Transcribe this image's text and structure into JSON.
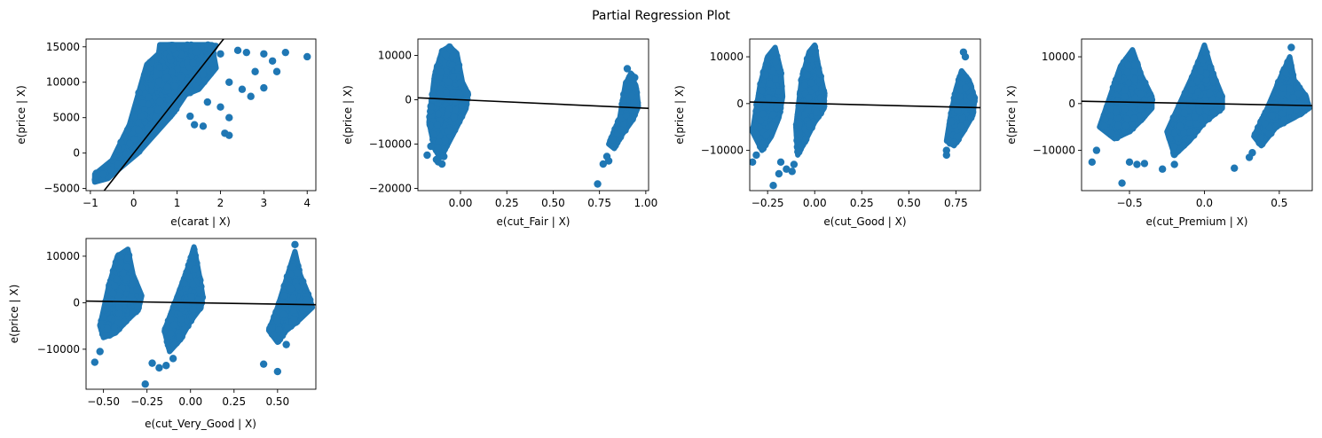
{
  "figure": {
    "title": "Partial Regression Plot",
    "point_color": "#1f77b4",
    "line_color": "#000000"
  },
  "chart_data": [
    {
      "type": "scatter",
      "xlabel": "e(carat | X)",
      "ylabel": "e(price | X)",
      "xlim": [
        -1.1,
        4.2
      ],
      "ylim": [
        -5300,
        16100
      ],
      "xticks": [
        -1,
        0,
        1,
        2,
        3,
        4
      ],
      "xtick_labels": [
        "−1",
        "0",
        "1",
        "2",
        "3",
        "4"
      ],
      "yticks": [
        -5000,
        0,
        5000,
        10000,
        15000
      ],
      "ytick_labels": [
        "−5000",
        "0",
        "5000",
        "10000",
        "15000"
      ],
      "fit_line": {
        "slope": 7770,
        "intercept": 0
      },
      "clusters": [
        {
          "poly": [
            [
              -0.9,
              -4100
            ],
            [
              -0.6,
              -3600
            ],
            [
              0.1,
              0
            ],
            [
              0.9,
              5500
            ],
            [
              1.5,
              11000
            ],
            [
              1.9,
              15200
            ],
            [
              0.8,
              15300
            ],
            [
              0.3,
              12500
            ],
            [
              -0.1,
              4000
            ],
            [
              -0.5,
              -1000
            ],
            [
              -0.9,
              -3000
            ]
          ],
          "n": 450
        },
        {
          "poly": [
            [
              0.6,
              15300
            ],
            [
              1.8,
              15300
            ],
            [
              1.9,
              12000
            ],
            [
              1.5,
              9000
            ],
            [
              0.9,
              7500
            ],
            [
              0.5,
              10000
            ]
          ],
          "n": 140
        }
      ],
      "points": [
        [
          2.0,
          14000
        ],
        [
          2.4,
          14500
        ],
        [
          2.6,
          14200
        ],
        [
          3.0,
          14000
        ],
        [
          3.5,
          14200
        ],
        [
          4.0,
          13600
        ],
        [
          2.8,
          11500
        ],
        [
          3.3,
          11500
        ],
        [
          3.2,
          13000
        ],
        [
          2.5,
          9000
        ],
        [
          2.7,
          8000
        ],
        [
          3.0,
          9200
        ],
        [
          2.2,
          10000
        ],
        [
          2.0,
          6500
        ],
        [
          1.7,
          7200
        ],
        [
          2.2,
          5000
        ],
        [
          1.3,
          5200
        ],
        [
          1.6,
          3800
        ],
        [
          2.1,
          2800
        ],
        [
          2.2,
          2500
        ],
        [
          1.4,
          4000
        ]
      ]
    },
    {
      "type": "scatter",
      "xlabel": "e(cut_Fair | X)",
      "ylabel": "e(price | X)",
      "xlim": [
        -0.23,
        1.015
      ],
      "ylim": [
        -20500,
        13700
      ],
      "xticks": [
        0,
        0.25,
        0.5,
        0.75,
        1.0
      ],
      "xtick_labels": [
        "0.00",
        "0.25",
        "0.50",
        "0.75",
        "1.00"
      ],
      "yticks": [
        -20000,
        -10000,
        0,
        10000
      ],
      "ytick_labels": [
        "−20000",
        "−10000",
        "0",
        "10000"
      ],
      "fit_line": {
        "slope": -1900,
        "intercept": 0
      },
      "clusters": [
        {
          "poly": [
            [
              -0.17,
              -5000
            ],
            [
              -0.14,
              5500
            ],
            [
              -0.1,
              11000
            ],
            [
              -0.06,
              12000
            ],
            [
              -0.02,
              10500
            ],
            [
              0.01,
              4000
            ],
            [
              0.04,
              1500
            ],
            [
              0.03,
              -2000
            ],
            [
              -0.03,
              -7000
            ],
            [
              -0.08,
              -11000
            ],
            [
              -0.11,
              -13000
            ],
            [
              -0.14,
              -11000
            ]
          ],
          "n": 420
        },
        {
          "poly": [
            [
              0.8,
              -10000
            ],
            [
              0.86,
              -4000
            ],
            [
              0.89,
              3500
            ],
            [
              0.92,
              6000
            ],
            [
              0.95,
              2500
            ],
            [
              0.96,
              -1500
            ],
            [
              0.93,
              -4500
            ],
            [
              0.87,
              -8000
            ],
            [
              0.83,
              -11000
            ]
          ],
          "n": 260
        }
      ],
      "points": [
        [
          -0.18,
          -12500
        ],
        [
          -0.16,
          -10500
        ],
        [
          -0.13,
          -13500
        ],
        [
          -0.12,
          -14000
        ],
        [
          -0.1,
          -14500
        ],
        [
          -0.09,
          -12800
        ],
        [
          0.74,
          -19000
        ],
        [
          0.77,
          -14500
        ],
        [
          0.79,
          -12800
        ],
        [
          0.8,
          -13800
        ],
        [
          0.82,
          -9000
        ],
        [
          0.9,
          7000
        ],
        [
          0.94,
          5000
        ]
      ]
    },
    {
      "type": "scatter",
      "xlabel": "e(cut_Good | X)",
      "ylabel": "e(price | X)",
      "xlim": [
        -0.345,
        0.88
      ],
      "ylim": [
        -18600,
        13800
      ],
      "xticks": [
        -0.25,
        0,
        0.25,
        0.5,
        0.75
      ],
      "xtick_labels": [
        "−0.25",
        "0.00",
        "0.25",
        "0.50",
        "0.75"
      ],
      "yticks": [
        -10000,
        0,
        10000
      ],
      "ytick_labels": [
        "−10000",
        "0",
        "10000"
      ],
      "fit_line": {
        "slope": -1000,
        "intercept": 0
      },
      "clusters": [
        {
          "poly": [
            [
              -0.33,
              -6000
            ],
            [
              -0.29,
              4000
            ],
            [
              -0.25,
              10000
            ],
            [
              -0.21,
              12000
            ],
            [
              -0.18,
              7000
            ],
            [
              -0.17,
              1500
            ],
            [
              -0.19,
              -3000
            ],
            [
              -0.23,
              -7000
            ],
            [
              -0.28,
              -10000
            ]
          ],
          "n": 320
        },
        {
          "poly": [
            [
              -0.1,
              -5000
            ],
            [
              -0.07,
              5000
            ],
            [
              -0.03,
              11000
            ],
            [
              0.0,
              12500
            ],
            [
              0.02,
              8000
            ],
            [
              0.05,
              2500
            ],
            [
              0.05,
              -1000
            ],
            [
              0.0,
              -4000
            ],
            [
              -0.05,
              -8000
            ],
            [
              -0.09,
              -11000
            ]
          ],
          "n": 380
        },
        {
          "poly": [
            [
              0.7,
              -8000
            ],
            [
              0.72,
              -3000
            ],
            [
              0.75,
              3000
            ],
            [
              0.78,
              7000
            ],
            [
              0.82,
              5000
            ],
            [
              0.85,
              1000
            ],
            [
              0.84,
              -2500
            ],
            [
              0.79,
              -6000
            ],
            [
              0.74,
              -9000
            ]
          ],
          "n": 220
        }
      ],
      "points": [
        [
          -0.33,
          -12500
        ],
        [
          -0.31,
          -11000
        ],
        [
          -0.22,
          -17500
        ],
        [
          -0.19,
          -15000
        ],
        [
          -0.18,
          -12500
        ],
        [
          -0.15,
          -14000
        ],
        [
          -0.12,
          -14500
        ],
        [
          -0.11,
          -13000
        ],
        [
          0.7,
          -10000
        ],
        [
          0.7,
          -11000
        ],
        [
          0.79,
          11000
        ],
        [
          0.8,
          10000
        ]
      ]
    },
    {
      "type": "scatter",
      "xlabel": "e(cut_Premium | X)",
      "ylabel": "e(price | X)",
      "xlim": [
        -0.82,
        0.72
      ],
      "ylim": [
        -18600,
        13800
      ],
      "xticks": [
        -0.5,
        0,
        0.5
      ],
      "xtick_labels": [
        "−0.5",
        "0.0",
        "0.5"
      ],
      "yticks": [
        -10000,
        0,
        10000
      ],
      "ytick_labels": [
        "−10000",
        "0",
        "10000"
      ],
      "fit_line": {
        "slope": -600,
        "intercept": 0
      },
      "clusters": [
        {
          "poly": [
            [
              -0.7,
              -5000
            ],
            [
              -0.63,
              1500
            ],
            [
              -0.56,
              8000
            ],
            [
              -0.48,
              11500
            ],
            [
              -0.42,
              6000
            ],
            [
              -0.35,
              1500
            ],
            [
              -0.35,
              -1000
            ],
            [
              -0.42,
              -3500
            ],
            [
              -0.5,
              -6000
            ],
            [
              -0.6,
              -7500
            ]
          ],
          "n": 380
        },
        {
          "poly": [
            [
              -0.25,
              -6000
            ],
            [
              -0.15,
              1000
            ],
            [
              -0.05,
              8000
            ],
            [
              0.0,
              12500
            ],
            [
              0.05,
              7000
            ],
            [
              0.12,
              1500
            ],
            [
              0.12,
              -1000
            ],
            [
              0.0,
              -4000
            ],
            [
              -0.1,
              -8000
            ],
            [
              -0.2,
              -11000
            ]
          ],
          "n": 400
        },
        {
          "poly": [
            [
              0.33,
              -7000
            ],
            [
              0.42,
              -1000
            ],
            [
              0.5,
              5000
            ],
            [
              0.57,
              10000
            ],
            [
              0.6,
              5000
            ],
            [
              0.68,
              1500
            ],
            [
              0.7,
              -1000
            ],
            [
              0.6,
              -3000
            ],
            [
              0.48,
              -5000
            ],
            [
              0.38,
              -9000
            ]
          ],
          "n": 380
        }
      ],
      "points": [
        [
          -0.75,
          -12500
        ],
        [
          -0.72,
          -10000
        ],
        [
          -0.55,
          -17000
        ],
        [
          -0.5,
          -12500
        ],
        [
          -0.45,
          -13000
        ],
        [
          -0.4,
          -12800
        ],
        [
          -0.28,
          -14000
        ],
        [
          -0.2,
          -13000
        ],
        [
          0.2,
          -13800
        ],
        [
          0.3,
          -11500
        ],
        [
          0.32,
          -10500
        ],
        [
          0.58,
          12000
        ]
      ]
    },
    {
      "type": "scatter",
      "xlabel": "e(cut_Very_Good | X)",
      "ylabel": "e(price | X)",
      "xlim": [
        -0.6,
        0.72
      ],
      "ylim": [
        -18600,
        13800
      ],
      "xticks": [
        -0.5,
        -0.25,
        0,
        0.25,
        0.5
      ],
      "xtick_labels": [
        "−0.50",
        "−0.25",
        "0.00",
        "0.25",
        "0.50"
      ],
      "yticks": [
        -10000,
        0,
        10000
      ],
      "ytick_labels": [
        "−10000",
        "0",
        "10000"
      ],
      "fit_line": {
        "slope": -600,
        "intercept": 0
      },
      "clusters": [
        {
          "poly": [
            [
              -0.52,
              -5000
            ],
            [
              -0.47,
              3500
            ],
            [
              -0.42,
              10000
            ],
            [
              -0.36,
              11500
            ],
            [
              -0.33,
              6000
            ],
            [
              -0.28,
              1500
            ],
            [
              -0.3,
              -1500
            ],
            [
              -0.37,
              -4000
            ],
            [
              -0.43,
              -6500
            ],
            [
              -0.5,
              -7500
            ]
          ],
          "n": 360
        },
        {
          "poly": [
            [
              -0.15,
              -6000
            ],
            [
              -0.08,
              1000
            ],
            [
              -0.02,
              7000
            ],
            [
              0.02,
              12000
            ],
            [
              0.05,
              6000
            ],
            [
              0.07,
              1500
            ],
            [
              0.06,
              -1000
            ],
            [
              0.0,
              -4000
            ],
            [
              -0.06,
              -8000
            ],
            [
              -0.12,
              -10500
            ]
          ],
          "n": 400
        },
        {
          "poly": [
            [
              0.45,
              -6000
            ],
            [
              0.5,
              -1000
            ],
            [
              0.55,
              5000
            ],
            [
              0.6,
              11000
            ],
            [
              0.63,
              6000
            ],
            [
              0.68,
              1500
            ],
            [
              0.7,
              -1000
            ],
            [
              0.63,
              -3500
            ],
            [
              0.55,
              -6000
            ],
            [
              0.5,
              -8500
            ]
          ],
          "n": 360
        }
      ],
      "points": [
        [
          -0.55,
          -12800
        ],
        [
          -0.52,
          -10500
        ],
        [
          -0.26,
          -17500
        ],
        [
          -0.22,
          -13000
        ],
        [
          -0.18,
          -14000
        ],
        [
          -0.14,
          -13500
        ],
        [
          -0.1,
          -12000
        ],
        [
          0.42,
          -13200
        ],
        [
          0.5,
          -14800
        ],
        [
          0.55,
          -9000
        ],
        [
          0.6,
          12500
        ]
      ]
    }
  ]
}
